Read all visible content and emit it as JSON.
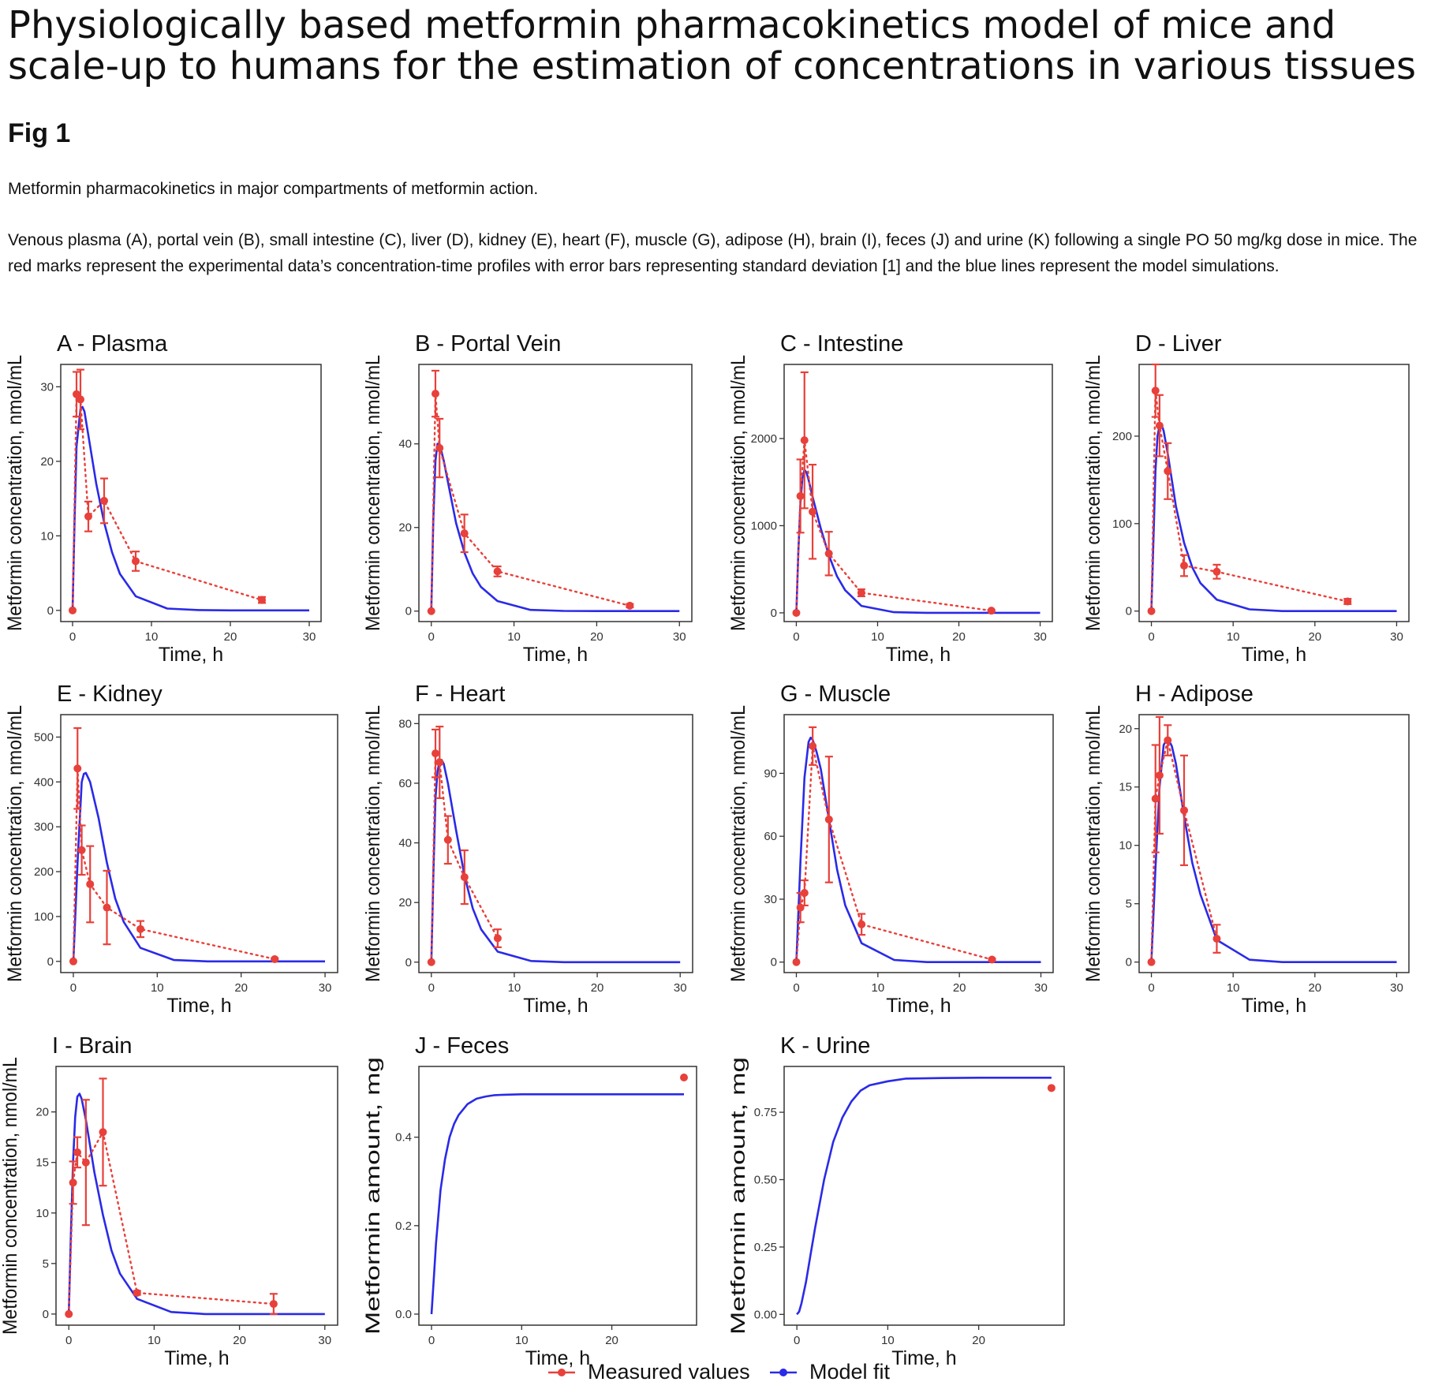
{
  "page": {
    "title": "Physiologically based metformin pharmacokinetics model of mice and scale-up to humans for the estimation of concentrations in various tissues",
    "fig_label": "Fig 1",
    "subtitle": "Metformin pharmacokinetics in major compartments of metformin action.",
    "caption": "Venous plasma (A), portal vein (B), small intestine (C), liver (D), kidney (E), heart (F), muscle (G), adipose (H), brain (I), feces (J) and urine (K) following a single PO 50 mg/kg dose in mice. The red marks represent the experimental data’s concentration-time profiles with error bars representing standard deviation [1] and the blue lines represent the model simulations."
  },
  "colors": {
    "measured": "#e8403a",
    "model": "#2a2ae8",
    "axis": "#333333"
  },
  "legend": [
    {
      "label": "Measured values",
      "color": "#e8403a"
    },
    {
      "label": "Model fit",
      "color": "#2a2ae8"
    }
  ],
  "chart_data": [
    {
      "id": "A",
      "type": "line",
      "title": "A - Plasma",
      "xlabel": "Time, h",
      "ylabel": "Metformin concentration, nmol/mL",
      "xlim": [
        -1.5,
        31.5
      ],
      "ylim": [
        -1.5,
        33
      ],
      "xticks": [
        0,
        10,
        20,
        30
      ],
      "yticks": [
        0,
        10,
        20,
        30
      ],
      "ytick_labels": [
        "0",
        "10",
        "20",
        "30"
      ],
      "series": [
        {
          "name": "Measured values",
          "kind": "measured",
          "x": [
            0,
            0.5,
            1,
            2,
            4,
            8,
            24
          ],
          "y": [
            0,
            29,
            28.3,
            12.6,
            14.7,
            6.6,
            1.4
          ],
          "err": [
            0,
            3,
            4,
            2,
            3,
            1.3,
            0.4
          ]
        },
        {
          "name": "Model fit",
          "kind": "model",
          "x": [
            0,
            0.25,
            0.5,
            1,
            1.25,
            1.5,
            2,
            3,
            4,
            5,
            6,
            8,
            12,
            16,
            20,
            24,
            30
          ],
          "y": [
            0,
            12,
            22,
            27,
            27.3,
            26.7,
            23.5,
            17,
            11.8,
            7.8,
            4.9,
            1.9,
            0.25,
            0.05,
            0,
            0,
            0
          ]
        }
      ]
    },
    {
      "id": "B",
      "type": "line",
      "title": "B - Portal Vein",
      "xlabel": "Time, h",
      "ylabel": "Metformin concentration, nmol/mL",
      "xlim": [
        -1.5,
        31.5
      ],
      "ylim": [
        -2.5,
        59
      ],
      "xticks": [
        0,
        10,
        20,
        30
      ],
      "yticks": [
        0,
        20,
        40
      ],
      "ytick_labels": [
        "0",
        "20",
        "40"
      ],
      "series": [
        {
          "name": "Measured values",
          "kind": "measured",
          "x": [
            0,
            0.5,
            1,
            4,
            8,
            24
          ],
          "y": [
            0,
            52,
            39,
            18.6,
            9.5,
            1.3
          ],
          "err": [
            0,
            5.5,
            7,
            4.5,
            1.2,
            0.4
          ]
        },
        {
          "name": "Model fit",
          "kind": "model",
          "x": [
            0,
            0.25,
            0.5,
            0.75,
            1,
            1.5,
            2,
            3,
            4,
            5,
            6,
            8,
            12,
            16,
            20,
            24,
            30
          ],
          "y": [
            0,
            22,
            36,
            40,
            40,
            36,
            31,
            21,
            14,
            9,
            5.8,
            2.4,
            0.3,
            0.05,
            0,
            0,
            0
          ]
        }
      ]
    },
    {
      "id": "C",
      "type": "line",
      "title": "C - Intestine",
      "xlabel": "Time, h",
      "ylabel": "Metformin concentration, nmol/mL",
      "xlim": [
        -1.5,
        31.5
      ],
      "ylim": [
        -100,
        2850
      ],
      "xticks": [
        0,
        10,
        20,
        30
      ],
      "yticks": [
        0,
        1000,
        2000
      ],
      "ytick_labels": [
        "0",
        "1000",
        "2000"
      ],
      "series": [
        {
          "name": "Measured values",
          "kind": "measured",
          "x": [
            0,
            0.5,
            1,
            2,
            4,
            8,
            24
          ],
          "y": [
            0,
            1340,
            1980,
            1160,
            680,
            230,
            25
          ],
          "err": [
            0,
            420,
            780,
            540,
            250,
            40,
            10
          ]
        },
        {
          "name": "Model fit",
          "kind": "model",
          "x": [
            0,
            0.25,
            0.5,
            0.75,
            1,
            1.25,
            1.5,
            2,
            3,
            4,
            5,
            6,
            8,
            12,
            16,
            20,
            24,
            30
          ],
          "y": [
            0,
            700,
            1250,
            1550,
            1640,
            1610,
            1530,
            1330,
            970,
            660,
            420,
            260,
            80,
            8,
            0,
            0,
            0,
            0
          ]
        }
      ]
    },
    {
      "id": "D",
      "type": "line",
      "title": "D - Liver",
      "xlabel": "Time, h",
      "ylabel": "Metformin concentration, nmol/mL",
      "xlim": [
        -1.5,
        31.5
      ],
      "ylim": [
        -12,
        282
      ],
      "xticks": [
        0,
        10,
        20,
        30
      ],
      "yticks": [
        0,
        100,
        200
      ],
      "ytick_labels": [
        "0",
        "100",
        "200"
      ],
      "series": [
        {
          "name": "Measured values",
          "kind": "measured",
          "x": [
            0,
            0.5,
            1,
            2,
            4,
            8,
            24
          ],
          "y": [
            0,
            252,
            212,
            160,
            52,
            45,
            11
          ],
          "err": [
            0,
            30,
            35,
            32,
            12,
            8,
            3
          ]
        },
        {
          "name": "Model fit",
          "kind": "model",
          "x": [
            0,
            0.25,
            0.5,
            0.75,
            1,
            1.25,
            1.5,
            2,
            3,
            4,
            5,
            6,
            8,
            12,
            16,
            20,
            24,
            30
          ],
          "y": [
            0,
            80,
            160,
            200,
            212,
            213,
            206,
            180,
            120,
            78,
            50,
            32,
            13,
            2,
            0,
            0,
            0,
            0
          ]
        }
      ]
    },
    {
      "id": "E",
      "type": "line",
      "title": "E - Kidney",
      "xlabel": "Time, h",
      "ylabel": "Metformin concentration, nmol/mL",
      "xlim": [
        -1.5,
        31.5
      ],
      "ylim": [
        -25,
        550
      ],
      "xticks": [
        0,
        10,
        20,
        30
      ],
      "yticks": [
        0,
        100,
        200,
        300,
        400,
        500
      ],
      "ytick_labels": [
        "0",
        "100",
        "200",
        "300",
        "400",
        "500"
      ],
      "series": [
        {
          "name": "Measured values",
          "kind": "measured",
          "x": [
            0,
            0.5,
            1,
            2,
            4,
            8,
            24
          ],
          "y": [
            0,
            430,
            248,
            172,
            120,
            72,
            5
          ],
          "err": [
            0,
            90,
            55,
            85,
            82,
            18,
            2
          ]
        },
        {
          "name": "Model fit",
          "kind": "model",
          "x": [
            0,
            0.5,
            1,
            1.25,
            1.5,
            2,
            3,
            4,
            5,
            6,
            8,
            12,
            16,
            20,
            24,
            30
          ],
          "y": [
            0,
            220,
            400,
            418,
            420,
            400,
            320,
            220,
            140,
            88,
            30,
            3,
            0,
            0,
            0,
            0
          ]
        }
      ]
    },
    {
      "id": "F",
      "type": "line",
      "title": "F - Heart",
      "xlabel": "Time, h",
      "ylabel": "Metformin concentration, nmol/mL",
      "xlim": [
        -1.5,
        31.5
      ],
      "ylim": [
        -3.5,
        83
      ],
      "xticks": [
        0,
        10,
        20,
        30
      ],
      "yticks": [
        0,
        20,
        40,
        60,
        80
      ],
      "ytick_labels": [
        "0",
        "20",
        "40",
        "60",
        "80"
      ],
      "series": [
        {
          "name": "Measured values",
          "kind": "measured",
          "x": [
            0,
            0.5,
            1,
            2,
            4,
            8
          ],
          "y": [
            0,
            70,
            67,
            41,
            28.5,
            8
          ],
          "err": [
            0,
            8,
            12,
            8,
            9,
            3
          ]
        },
        {
          "name": "Model fit",
          "kind": "model",
          "x": [
            0,
            0.25,
            0.5,
            0.75,
            1,
            1.25,
            1.5,
            2,
            3,
            4,
            5,
            6,
            8,
            12,
            16,
            20,
            24,
            30
          ],
          "y": [
            0,
            30,
            55,
            64,
            67.5,
            67.8,
            66.5,
            60,
            44,
            29,
            18,
            11,
            3.5,
            0.4,
            0,
            0,
            0,
            0
          ]
        }
      ]
    },
    {
      "id": "G",
      "type": "line",
      "title": "G - Muscle",
      "xlabel": "Time, h",
      "ylabel": "Metformin concentration, nmol/mL",
      "xlim": [
        -1.5,
        31.5
      ],
      "ylim": [
        -5,
        118
      ],
      "xticks": [
        0,
        10,
        20,
        30
      ],
      "yticks": [
        0,
        30,
        60,
        90
      ],
      "ytick_labels": [
        "0",
        "30",
        "60",
        "90"
      ],
      "series": [
        {
          "name": "Measured values",
          "kind": "measured",
          "x": [
            0,
            0.5,
            1,
            2,
            4,
            8,
            24
          ],
          "y": [
            0,
            26,
            33,
            103,
            68,
            18,
            1.2
          ],
          "err": [
            0,
            7,
            6,
            9,
            30,
            5,
            0.5
          ]
        },
        {
          "name": "Model fit",
          "kind": "model",
          "x": [
            0,
            0.5,
            1,
            1.5,
            1.75,
            2,
            2.5,
            3,
            4,
            5,
            6,
            8,
            12,
            16,
            20,
            24,
            30
          ],
          "y": [
            0,
            48,
            88,
            105,
            107,
            106,
            100,
            92,
            68,
            44,
            27,
            9,
            1,
            0,
            0,
            0,
            0
          ]
        }
      ]
    },
    {
      "id": "H",
      "type": "line",
      "title": "H - Adipose",
      "xlabel": "Time, h",
      "ylabel": "Metformin concentration, nmol/mL",
      "xlim": [
        -1.5,
        31.5
      ],
      "ylim": [
        -0.9,
        21.2
      ],
      "xticks": [
        0,
        10,
        20,
        30
      ],
      "yticks": [
        0,
        5,
        10,
        15,
        20
      ],
      "ytick_labels": [
        "0",
        "5",
        "10",
        "15",
        "20"
      ],
      "series": [
        {
          "name": "Measured values",
          "kind": "measured",
          "x": [
            0,
            0.5,
            1,
            2,
            4,
            8
          ],
          "y": [
            0,
            14,
            16,
            19,
            13,
            2
          ],
          "err": [
            0,
            4.6,
            5,
            1.3,
            4.7,
            1.2
          ]
        },
        {
          "name": "Model fit",
          "kind": "model",
          "x": [
            0,
            0.5,
            1,
            1.5,
            2,
            2.5,
            3,
            4,
            5,
            6,
            8,
            12,
            16,
            20,
            24,
            30
          ],
          "y": [
            0,
            8,
            15,
            18.6,
            19.2,
            18.5,
            17,
            12.5,
            8.5,
            5.8,
            1.9,
            0.2,
            0,
            0,
            0,
            0
          ]
        }
      ]
    },
    {
      "id": "I",
      "type": "line",
      "title": "I - Brain",
      "xlabel": "Time, h",
      "ylabel": "Metformin concentration, nmol/mL",
      "xlim": [
        -1.5,
        31.5
      ],
      "ylim": [
        -1.1,
        24.5
      ],
      "xticks": [
        0,
        10,
        20,
        30
      ],
      "yticks": [
        0,
        5,
        10,
        15,
        20
      ],
      "ytick_labels": [
        "0",
        "5",
        "10",
        "15",
        "20"
      ],
      "series": [
        {
          "name": "Measured values",
          "kind": "measured",
          "x": [
            0,
            0.5,
            1,
            2,
            4,
            8,
            24
          ],
          "y": [
            0,
            13,
            16,
            15,
            18,
            2.1,
            1
          ],
          "err": [
            0,
            2.1,
            1.5,
            6.2,
            5.3,
            0.2,
            1
          ]
        },
        {
          "name": "Model fit",
          "kind": "model",
          "x": [
            0,
            0.25,
            0.5,
            0.75,
            1,
            1.25,
            1.5,
            2,
            3,
            4,
            5,
            6,
            8,
            12,
            16,
            20,
            24,
            30
          ],
          "y": [
            0,
            8,
            15,
            19.5,
            21.5,
            21.8,
            21.3,
            19.2,
            14,
            9.8,
            6.3,
            4,
            1.5,
            0.2,
            0,
            0,
            0,
            0
          ]
        }
      ]
    },
    {
      "id": "J",
      "type": "line",
      "title": "J - Feces",
      "xlabel": "Time, h",
      "ylabel": "Metformin amount, mg",
      "xlim": [
        -1.4,
        29.4
      ],
      "ylim": [
        -0.025,
        0.56
      ],
      "xticks": [
        0,
        10,
        20
      ],
      "yticks": [
        0,
        0.2,
        0.4
      ],
      "ytick_labels": [
        "0.0",
        "0.2",
        "0.4"
      ],
      "series": [
        {
          "name": "Measured values",
          "kind": "measured",
          "x": [
            28
          ],
          "y": [
            0.535
          ],
          "err": [
            0
          ]
        },
        {
          "name": "Model fit",
          "kind": "model",
          "x": [
            0,
            0.25,
            0.5,
            1,
            1.5,
            2,
            2.5,
            3,
            4,
            5,
            6,
            7,
            8,
            10,
            12,
            16,
            20,
            24,
            28
          ],
          "y": [
            0,
            0.08,
            0.16,
            0.28,
            0.35,
            0.4,
            0.43,
            0.45,
            0.475,
            0.487,
            0.492,
            0.495,
            0.496,
            0.497,
            0.497,
            0.497,
            0.497,
            0.497,
            0.497
          ]
        }
      ]
    },
    {
      "id": "K",
      "type": "line",
      "title": "K - Urine",
      "xlabel": "Time, h",
      "ylabel": "Metformin amount, mg",
      "xlim": [
        -1.4,
        29.4
      ],
      "ylim": [
        -0.04,
        0.92
      ],
      "xticks": [
        0,
        10,
        20
      ],
      "yticks": [
        0,
        0.25,
        0.5,
        0.75
      ],
      "ytick_labels": [
        "0.00",
        "0.25",
        "0.50",
        "0.75"
      ],
      "series": [
        {
          "name": "Measured values",
          "kind": "measured",
          "x": [
            28
          ],
          "y": [
            0.84
          ],
          "err": [
            0
          ]
        },
        {
          "name": "Model fit",
          "kind": "model",
          "x": [
            0,
            0.25,
            0.5,
            1,
            1.5,
            2,
            3,
            4,
            5,
            6,
            7,
            8,
            10,
            12,
            16,
            20,
            24,
            28
          ],
          "y": [
            0,
            0.01,
            0.04,
            0.12,
            0.22,
            0.32,
            0.5,
            0.64,
            0.73,
            0.79,
            0.83,
            0.85,
            0.865,
            0.875,
            0.877,
            0.878,
            0.878,
            0.878
          ]
        }
      ]
    }
  ]
}
